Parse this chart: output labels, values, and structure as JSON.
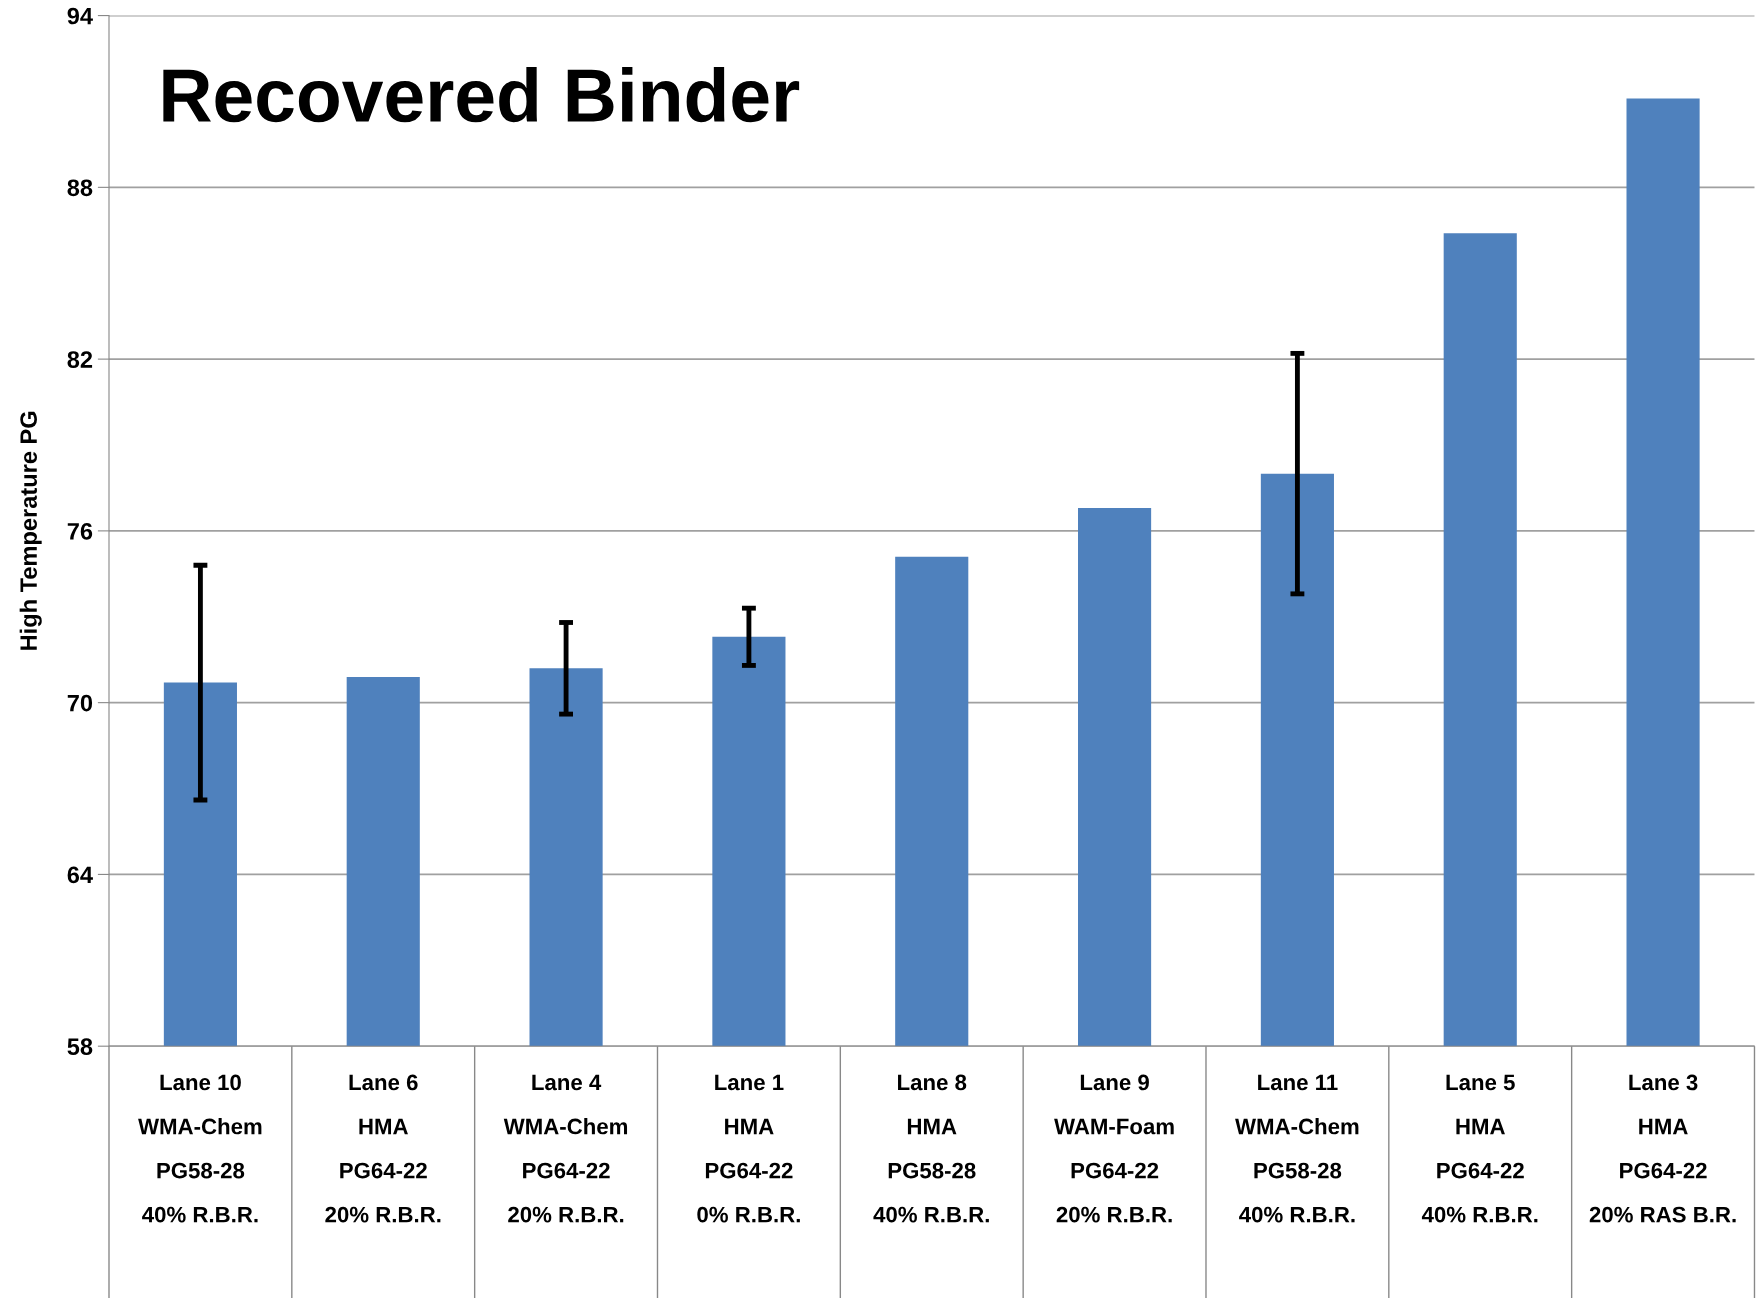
{
  "chart_data": {
    "type": "bar",
    "title": "Recovered Binder",
    "ylabel": "High Temperature PG",
    "categories": [
      "Lane 10\nWMA-Chem\nPG58-28\n40% R.B.R.",
      "Lane 6\nHMA\nPG64-22\n20% R.B.R.",
      "Lane 4\nWMA-Chem\nPG64-22\n20% R.B.R.",
      "Lane 1\nHMA\nPG64-22\n0% R.B.R.",
      "Lane 8\nHMA\nPG58-28\n40% R.B.R.",
      "Lane 9\nWAM-Foam\nPG64-22\n20% R.B.R.",
      "Lane 11\nWMA-Chem\nPG58-28\n40% R.B.R.",
      "Lane 5\nHMA\nPG64-22\n40% R.B.R.",
      "Lane 3\nHMA\nPG64-22\n20% RAS B.R."
    ],
    "values": [
      70.7,
      70.9,
      71.2,
      72.3,
      75.1,
      76.8,
      78.0,
      86.4,
      91.1
    ],
    "errors": [
      4.1,
      null,
      1.6,
      1.0,
      null,
      null,
      4.2,
      null,
      null
    ],
    "color": "#4f81bd",
    "ylim": [
      58,
      94
    ],
    "yticks": [
      58,
      64,
      70,
      76,
      82,
      88,
      94
    ],
    "grid": "y"
  }
}
